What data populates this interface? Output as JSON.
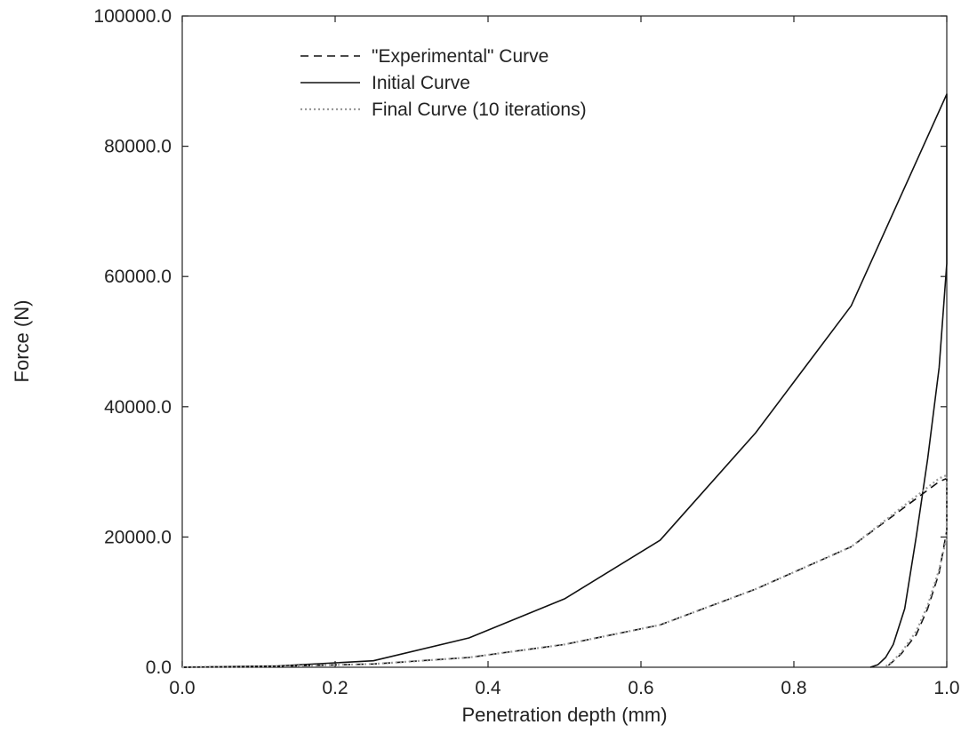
{
  "chart_data": {
    "type": "line",
    "title": "",
    "xlabel": "Penetration depth (mm)",
    "ylabel": "Force (N)",
    "xlim": [
      0.0,
      1.0
    ],
    "ylim": [
      0.0,
      100000.0
    ],
    "x_ticks": [
      "0.0",
      "0.2",
      "0.4",
      "0.6",
      "0.8",
      "1.0"
    ],
    "y_ticks": [
      "0.0",
      "20000.0",
      "40000.0",
      "60000.0",
      "80000.0",
      "100000.0"
    ],
    "grid": false,
    "legend_position": "top-left",
    "series": [
      {
        "name": "\"Experimental\" Curve",
        "style": "dashed",
        "color": "#111111",
        "points": [
          [
            0.0,
            0
          ],
          [
            0.125,
            150
          ],
          [
            0.25,
            500
          ],
          [
            0.375,
            1500
          ],
          [
            0.5,
            3500
          ],
          [
            0.625,
            6500
          ],
          [
            0.75,
            12000
          ],
          [
            0.875,
            18500
          ],
          [
            0.99,
            28500
          ],
          [
            1.0,
            29000
          ],
          [
            1.0,
            21000
          ],
          [
            0.99,
            14500
          ],
          [
            0.975,
            9000
          ],
          [
            0.96,
            5000
          ],
          [
            0.94,
            2000
          ],
          [
            0.925,
            400
          ],
          [
            0.918,
            0
          ]
        ]
      },
      {
        "name": "Initial Curve",
        "style": "solid",
        "color": "#111111",
        "points": [
          [
            0.0,
            0
          ],
          [
            0.125,
            200
          ],
          [
            0.25,
            1000
          ],
          [
            0.375,
            4500
          ],
          [
            0.5,
            10500
          ],
          [
            0.625,
            19500
          ],
          [
            0.75,
            36000
          ],
          [
            0.875,
            55500
          ],
          [
            1.0,
            88000
          ],
          [
            1.0,
            62000
          ],
          [
            0.99,
            46000
          ],
          [
            0.975,
            32000
          ],
          [
            0.96,
            20000
          ],
          [
            0.945,
            9000
          ],
          [
            0.93,
            3500
          ],
          [
            0.92,
            1500
          ],
          [
            0.91,
            400
          ],
          [
            0.9,
            0
          ]
        ]
      },
      {
        "name": "Final Curve (10 iterations)",
        "style": "dotted",
        "color": "#9a9a9a",
        "points": [
          [
            0.0,
            0
          ],
          [
            0.125,
            150
          ],
          [
            0.25,
            500
          ],
          [
            0.375,
            1500
          ],
          [
            0.5,
            3500
          ],
          [
            0.625,
            6500
          ],
          [
            0.75,
            12000
          ],
          [
            0.875,
            18500
          ],
          [
            0.99,
            29000
          ],
          [
            1.0,
            29500
          ],
          [
            1.0,
            20000
          ],
          [
            0.99,
            15000
          ],
          [
            0.975,
            9500
          ],
          [
            0.96,
            5500
          ],
          [
            0.94,
            2200
          ],
          [
            0.925,
            500
          ],
          [
            0.918,
            0
          ]
        ]
      }
    ]
  }
}
